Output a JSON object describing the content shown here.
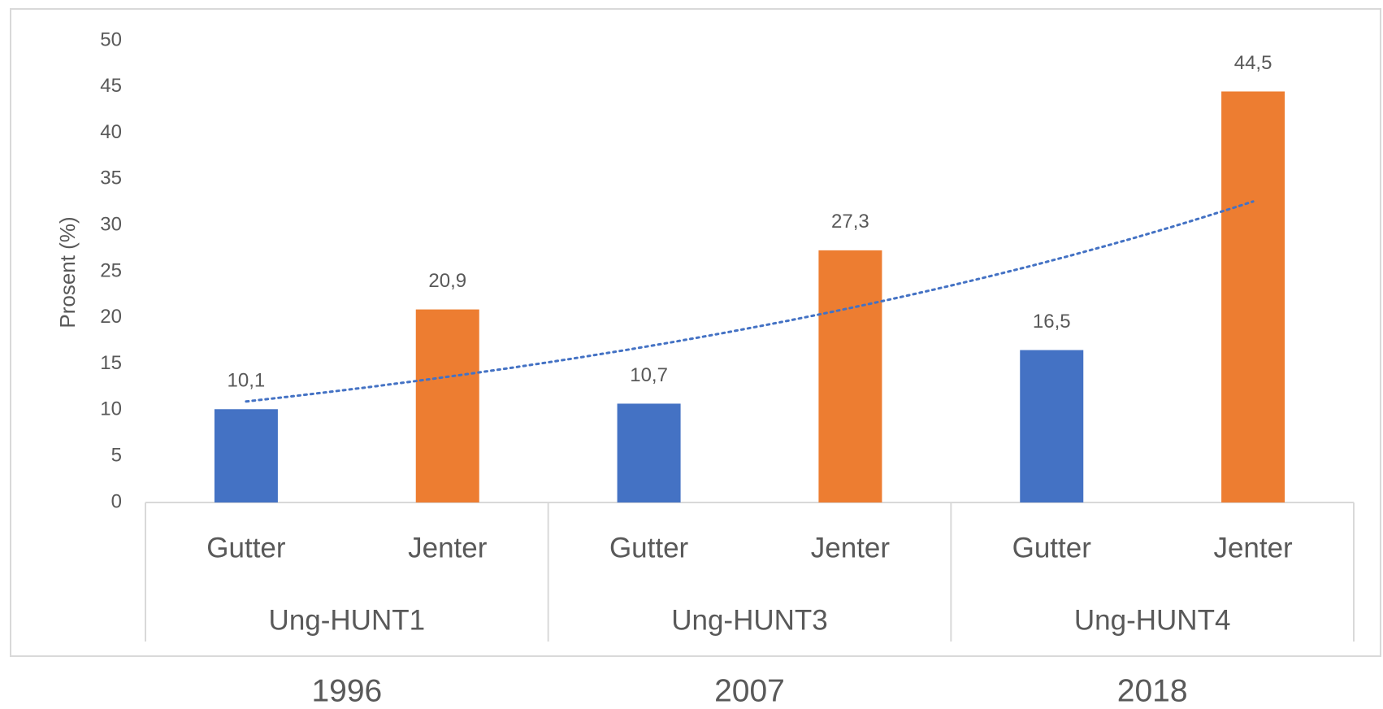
{
  "chart_data": {
    "type": "bar",
    "y_label": "Prosent (%)",
    "categories": [
      "Gutter",
      "Jenter",
      "Gutter",
      "Jenter",
      "Gutter",
      "Jenter"
    ],
    "values": [
      10.1,
      20.9,
      10.7,
      27.3,
      16.5,
      44.5
    ],
    "value_labels": [
      "10,1",
      "20,9",
      "10,7",
      "27,3",
      "16,5",
      "44,5"
    ],
    "colors": [
      "#4472c4",
      "#ed7d31",
      "#4472c4",
      "#ed7d31",
      "#4472c4",
      "#ed7d31"
    ],
    "groups": [
      {
        "name": "Ung-HUNT1",
        "label": "1996"
      },
      {
        "name": "Ung-HUNT3",
        "label": "2007"
      },
      {
        "name": "Ung-HUNT4",
        "label": "2018"
      }
    ],
    "ylim": [
      0,
      50
    ],
    "yticks": [
      0,
      5,
      10,
      15,
      20,
      25,
      30,
      35,
      40,
      45,
      50
    ],
    "trendline": "exponential",
    "trendline_color": "#4472c4"
  }
}
